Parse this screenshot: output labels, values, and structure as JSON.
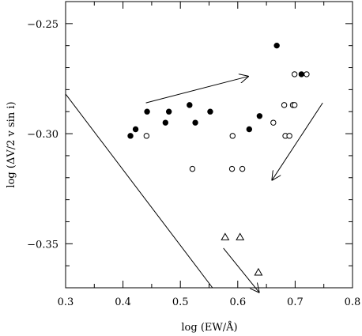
{
  "chart_data": {
    "type": "scatter",
    "title": "",
    "xlabel": "log (EW/Å)",
    "ylabel": "log (ΔV/2 v sin i)",
    "xlim": [
      0.3,
      0.8
    ],
    "ylim": [
      -0.37,
      -0.24
    ],
    "xticks": [
      0.3,
      0.4,
      0.5,
      0.6,
      0.7,
      0.8
    ],
    "xtick_labels": [
      "0.3",
      "0.4",
      "0.5",
      "0.6",
      "0.7",
      "0.8"
    ],
    "yticks": [
      -0.35,
      -0.3,
      -0.25
    ],
    "ytick_labels": [
      "−0.35",
      "−0.30",
      "−0.25"
    ],
    "grid": false,
    "series": [
      {
        "marker": "filled-circle",
        "points": [
          [
            0.413,
            -0.301
          ],
          [
            0.422,
            -0.298
          ],
          [
            0.442,
            -0.29
          ],
          [
            0.474,
            -0.295
          ],
          [
            0.48,
            -0.29
          ],
          [
            0.516,
            -0.287
          ],
          [
            0.526,
            -0.295
          ],
          [
            0.552,
            -0.29
          ],
          [
            0.62,
            -0.298
          ],
          [
            0.638,
            -0.292
          ],
          [
            0.668,
            -0.26
          ],
          [
            0.711,
            -0.273
          ]
        ]
      },
      {
        "marker": "open-circle",
        "points": [
          [
            0.441,
            -0.301
          ],
          [
            0.521,
            -0.316
          ],
          [
            0.59,
            -0.316
          ],
          [
            0.591,
            -0.301
          ],
          [
            0.608,
            -0.316
          ],
          [
            0.662,
            -0.295
          ],
          [
            0.681,
            -0.287
          ],
          [
            0.683,
            -0.301
          ],
          [
            0.69,
            -0.301
          ],
          [
            0.696,
            -0.287
          ],
          [
            0.699,
            -0.287
          ],
          [
            0.699,
            -0.273
          ],
          [
            0.72,
            -0.273
          ]
        ]
      },
      {
        "marker": "open-triangle",
        "points": [
          [
            0.578,
            -0.347
          ],
          [
            0.604,
            -0.347
          ],
          [
            0.636,
            -0.363
          ]
        ]
      }
    ],
    "lines": [
      {
        "from": [
          0.3,
          -0.282
        ],
        "to": [
          0.556,
          -0.37
        ]
      }
    ],
    "arrows": [
      {
        "from": [
          0.44,
          -0.286
        ],
        "to": [
          0.618,
          -0.274
        ]
      },
      {
        "from": [
          0.748,
          -0.286
        ],
        "to": [
          0.66,
          -0.321
        ]
      },
      {
        "from": [
          0.575,
          -0.352
        ],
        "to": [
          0.637,
          -0.372
        ]
      }
    ]
  }
}
